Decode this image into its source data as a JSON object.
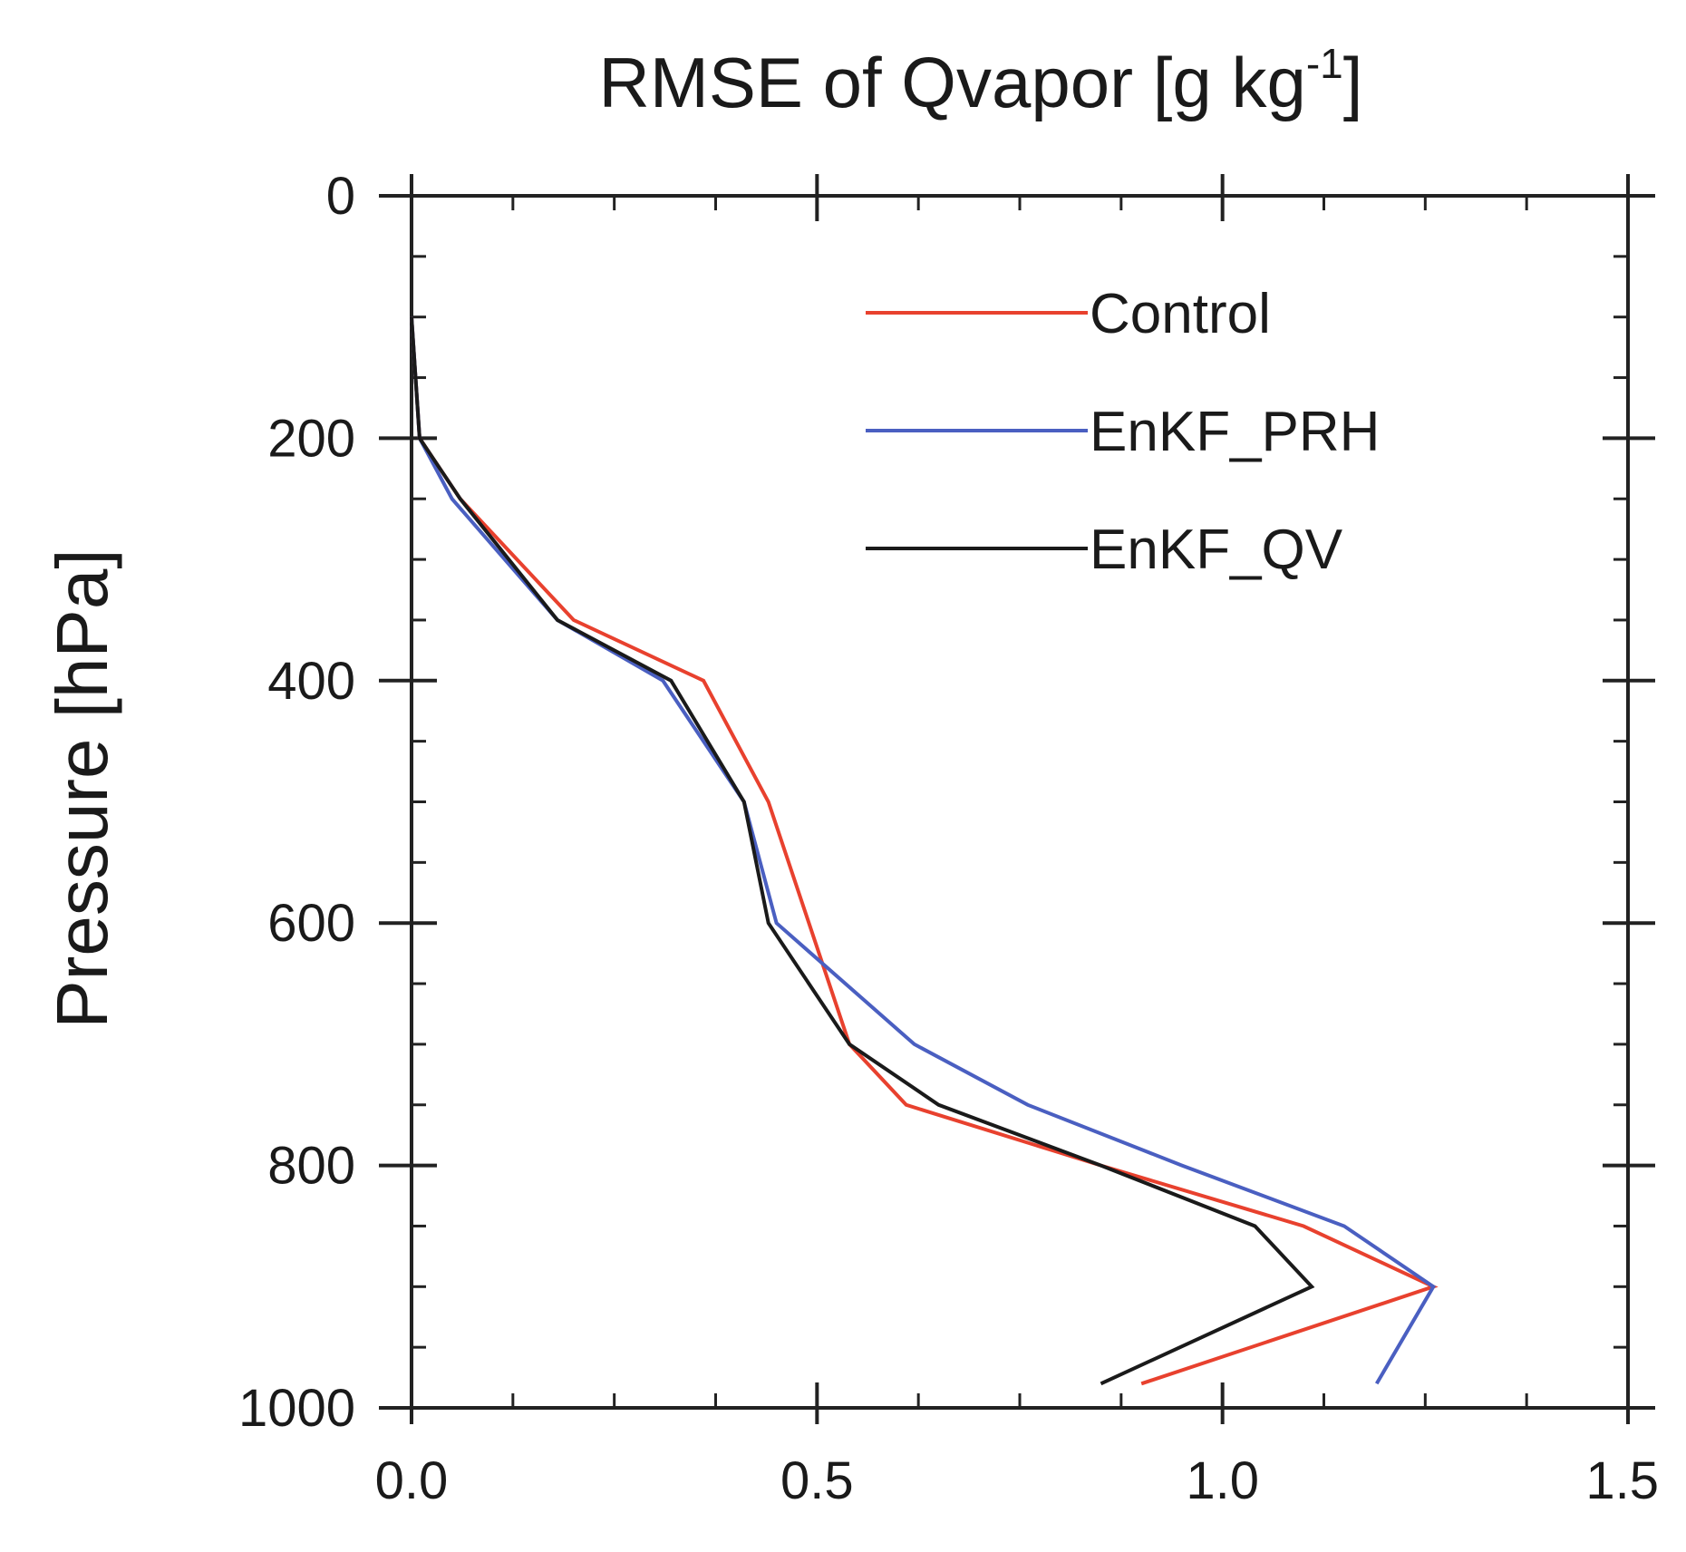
{
  "chart_data": {
    "type": "line",
    "title_main": "RMSE of Qvapor  [g kg",
    "title_sup": "-1",
    "title_end": "]",
    "ylabel": "Pressure  [hPa]",
    "xlabel": "",
    "xlim": [
      0.0,
      1.5
    ],
    "ylim": [
      0,
      1000
    ],
    "y_inverted": true,
    "grid": false,
    "legend_position": "top-right",
    "x_ticks": [
      {
        "value": 0.0,
        "label": "0.0"
      },
      {
        "value": 0.5,
        "label": "0.5"
      },
      {
        "value": 1.0,
        "label": "1.0"
      },
      {
        "value": 1.5,
        "label": "1.5"
      }
    ],
    "x_minor_step": 0.125,
    "y_ticks": [
      {
        "value": 0,
        "label": "0"
      },
      {
        "value": 200,
        "label": "200"
      },
      {
        "value": 400,
        "label": "400"
      },
      {
        "value": 600,
        "label": "600"
      },
      {
        "value": 800,
        "label": "800"
      },
      {
        "value": 1000,
        "label": "1000"
      }
    ],
    "y_minor_step": 50,
    "series": [
      {
        "name": "Control",
        "color": "#e8412e",
        "points": [
          [
            0.0,
            100
          ],
          [
            0.01,
            200
          ],
          [
            0.06,
            250
          ],
          [
            0.2,
            350
          ],
          [
            0.36,
            400
          ],
          [
            0.44,
            500
          ],
          [
            0.54,
            700
          ],
          [
            0.61,
            750
          ],
          [
            0.85,
            800
          ],
          [
            1.1,
            850
          ],
          [
            1.26,
            900
          ],
          [
            0.9,
            980
          ]
        ]
      },
      {
        "name": "EnKF_PRH",
        "color": "#4a5fc1",
        "points": [
          [
            0.0,
            100
          ],
          [
            0.01,
            200
          ],
          [
            0.05,
            250
          ],
          [
            0.18,
            350
          ],
          [
            0.31,
            400
          ],
          [
            0.41,
            500
          ],
          [
            0.45,
            600
          ],
          [
            0.62,
            700
          ],
          [
            0.76,
            750
          ],
          [
            0.95,
            800
          ],
          [
            1.15,
            850
          ],
          [
            1.26,
            900
          ],
          [
            1.19,
            980
          ]
        ]
      },
      {
        "name": "EnKF_QV",
        "color": "#1a1a1a",
        "points": [
          [
            0.0,
            100
          ],
          [
            0.01,
            200
          ],
          [
            0.06,
            250
          ],
          [
            0.18,
            350
          ],
          [
            0.32,
            400
          ],
          [
            0.41,
            500
          ],
          [
            0.44,
            600
          ],
          [
            0.54,
            700
          ],
          [
            0.65,
            750
          ],
          [
            0.85,
            800
          ],
          [
            1.04,
            850
          ],
          [
            1.11,
            900
          ],
          [
            0.85,
            980
          ]
        ]
      }
    ]
  }
}
